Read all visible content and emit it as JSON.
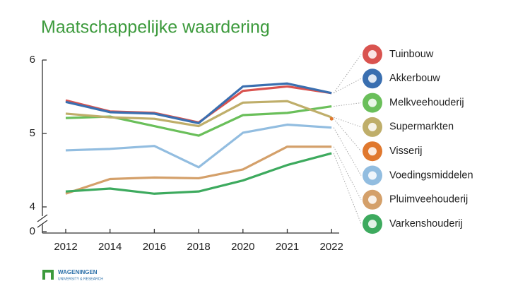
{
  "chart_data": {
    "type": "line",
    "title": "Maatschappelijke waardering",
    "categories": [
      "2012",
      "2014",
      "2016",
      "2018",
      "2020",
      "2021",
      "2022"
    ],
    "ylim": [
      3.85,
      6
    ],
    "yticks": [
      0,
      4,
      5,
      6
    ],
    "axis_break": true,
    "grid": false,
    "series": [
      {
        "name": "Tuinbouw",
        "color": "#d9534f",
        "values": [
          5.45,
          5.3,
          5.28,
          5.15,
          5.58,
          5.64,
          5.55
        ]
      },
      {
        "name": "Akkerbouw",
        "color": "#3a6fb0",
        "values": [
          5.43,
          5.29,
          5.27,
          5.14,
          5.64,
          5.68,
          5.55
        ]
      },
      {
        "name": "Melkveehouderij",
        "color": "#6abf5a",
        "values": [
          5.21,
          5.23,
          5.1,
          4.97,
          5.25,
          5.28,
          5.37
        ]
      },
      {
        "name": "Supermarkten",
        "color": "#bfae6a",
        "values": [
          5.27,
          5.22,
          5.2,
          5.1,
          5.42,
          5.44,
          5.22
        ]
      },
      {
        "name": "Visserij",
        "color": "#e0782e",
        "values": [
          null,
          null,
          null,
          null,
          null,
          null,
          5.2
        ]
      },
      {
        "name": "Voedingsmiddelen",
        "color": "#92bde0",
        "values": [
          4.77,
          4.79,
          4.83,
          4.54,
          5.01,
          5.12,
          5.08
        ]
      },
      {
        "name": "Pluimveehouderij",
        "color": "#d4a06a",
        "values": [
          4.18,
          4.38,
          4.4,
          4.39,
          4.51,
          4.82,
          4.82
        ]
      },
      {
        "name": "Varkenshouderij",
        "color": "#3daa5e",
        "values": [
          4.21,
          4.25,
          4.18,
          4.21,
          4.36,
          4.57,
          4.73
        ]
      }
    ]
  },
  "logo": {
    "name": "WAGENINGEN",
    "subtitle": "UNIVERSITY & RESEARCH"
  }
}
